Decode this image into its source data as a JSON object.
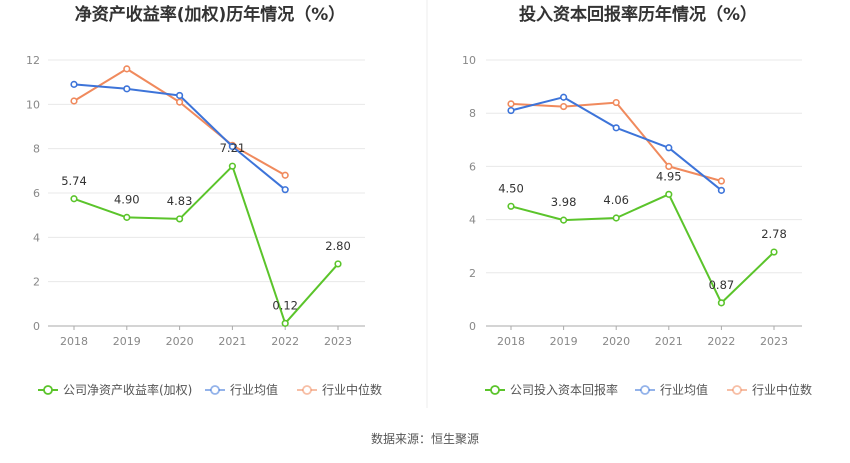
{
  "source": "数据来源：恒生聚源",
  "chart_data": [
    {
      "type": "line",
      "title": "净资产收益率(加权)历年情况（%）",
      "categories": [
        "2018",
        "2019",
        "2020",
        "2021",
        "2022",
        "2023"
      ],
      "ylim": [
        0,
        12
      ],
      "yticks": [
        0,
        2,
        4,
        6,
        8,
        10,
        12
      ],
      "grid": true,
      "legend_position": "bottom",
      "series": [
        {
          "name": "公司净资产收益率(加权)",
          "color": "#5bc42b",
          "values": [
            5.74,
            4.9,
            4.83,
            7.21,
            0.12,
            2.8
          ],
          "labels": [
            "5.74",
            "4.90",
            "4.83",
            "7.21",
            "0.12",
            "2.80"
          ]
        },
        {
          "name": "行业均值",
          "color": "#3d74d9",
          "values": [
            10.9,
            10.7,
            10.4,
            8.1,
            6.15,
            null
          ]
        },
        {
          "name": "行业中位数",
          "color": "#f08a5d",
          "values": [
            10.15,
            11.6,
            10.1,
            8.15,
            6.8,
            null
          ]
        }
      ]
    },
    {
      "type": "line",
      "title": "投入资本回报率历年情况（%）",
      "categories": [
        "2018",
        "2019",
        "2020",
        "2021",
        "2022",
        "2023"
      ],
      "ylim": [
        0,
        10
      ],
      "yticks": [
        0,
        2,
        4,
        6,
        8,
        10
      ],
      "grid": true,
      "legend_position": "bottom",
      "series": [
        {
          "name": "公司投入资本回报率",
          "color": "#5bc42b",
          "values": [
            4.5,
            3.98,
            4.06,
            4.95,
            0.87,
            2.78
          ],
          "labels": [
            "4.50",
            "3.98",
            "4.06",
            "4.95",
            "0.87",
            "2.78"
          ]
        },
        {
          "name": "行业均值",
          "color": "#3d74d9",
          "values": [
            8.1,
            8.6,
            7.45,
            6.7,
            5.1,
            null
          ]
        },
        {
          "name": "行业中位数",
          "color": "#f08a5d",
          "values": [
            8.35,
            8.25,
            8.4,
            6.0,
            5.45,
            null
          ]
        }
      ]
    }
  ]
}
